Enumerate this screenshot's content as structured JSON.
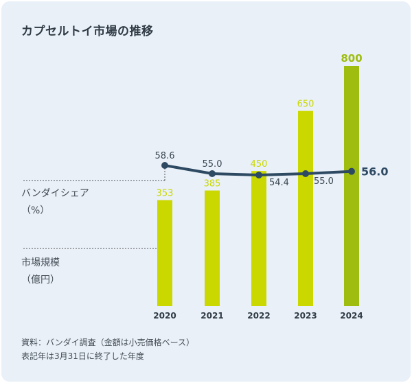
{
  "title": "カプセルトイ市場の推移",
  "share_label": [
    "バンダイシェア",
    "（%）"
  ],
  "size_label": [
    "市場規模",
    "（億円）"
  ],
  "footer": [
    "資料：バンダイ調査（金額は小売価格ベース）",
    "表記年は3月31日に終了した年度"
  ],
  "colors": {
    "bar": "#cad800",
    "bar_highlight": "#9ebd0e",
    "line": "#2e4a63",
    "background": "#e9f0f8",
    "text": "#444c55"
  },
  "chart_data": {
    "type": "bar",
    "title": "カプセルトイ市場の推移",
    "categories": [
      "2020",
      "2021",
      "2022",
      "2023",
      "2024"
    ],
    "highlight_index": 4,
    "series": [
      {
        "name": "市場規模（億円）",
        "type": "bar",
        "values": [
          353,
          385,
          450,
          650,
          800
        ],
        "labels": [
          "353",
          "385",
          "450",
          "650",
          "800"
        ]
      },
      {
        "name": "バンダイシェア（%）",
        "type": "line",
        "values": [
          58.6,
          55.0,
          54.4,
          55.0,
          56.0
        ],
        "labels": [
          "58.6",
          "55.0",
          "54.4",
          "55.0",
          "56.0"
        ]
      }
    ],
    "ylim": [
      0,
      800
    ],
    "grid": false,
    "legend": "none"
  }
}
